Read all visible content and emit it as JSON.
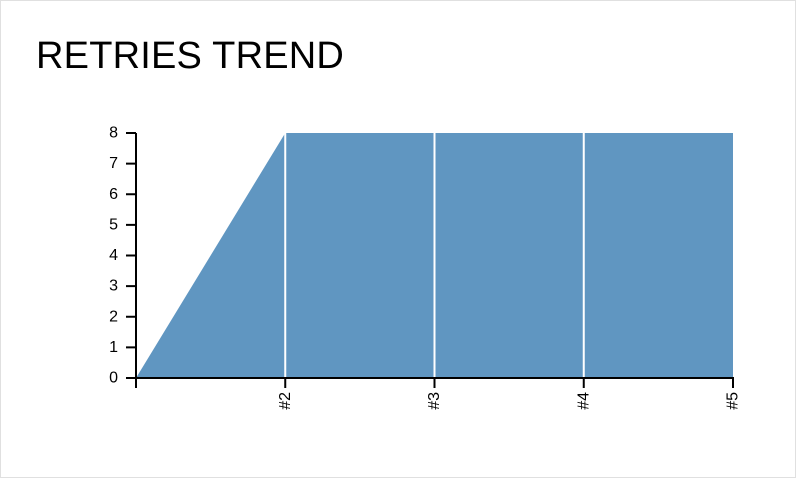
{
  "chart_data": {
    "type": "area",
    "title": "RETRIES TREND",
    "xlabel": "",
    "ylabel": "",
    "x_tick_labels": [
      "#2",
      "#3",
      "#4",
      "#5"
    ],
    "y_ticks": [
      0,
      1,
      2,
      3,
      4,
      5,
      6,
      7,
      8
    ],
    "ylim": [
      0,
      8
    ],
    "xlim": [
      1,
      5
    ],
    "grid": false,
    "legend": "none",
    "series": [
      {
        "x": [
          1,
          2,
          3,
          4,
          5
        ],
        "values": [
          0,
          8,
          8,
          8,
          8
        ],
        "color": "#6096c1"
      }
    ]
  }
}
